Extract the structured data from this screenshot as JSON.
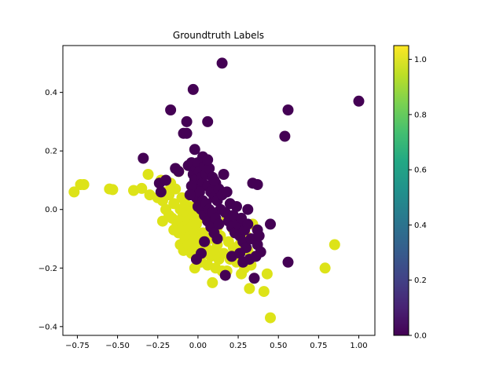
{
  "chart_data": {
    "type": "scatter",
    "title": "Groundtruth Labels",
    "xlabel": "",
    "ylabel": "",
    "xlim": [
      -0.84,
      1.1
    ],
    "ylim": [
      -0.43,
      0.56
    ],
    "x_ticks": [
      -0.75,
      -0.5,
      -0.25,
      0.0,
      0.25,
      0.5,
      0.75,
      1.0
    ],
    "x_tick_labels": [
      "−0.75",
      "−0.50",
      "−0.25",
      "0.00",
      "0.25",
      "0.50",
      "0.75",
      "1.00"
    ],
    "y_ticks": [
      -0.4,
      -0.2,
      0.0,
      0.2,
      0.4
    ],
    "y_tick_labels": [
      "−0.4",
      "−0.2",
      "0.0",
      "0.2",
      "0.4"
    ],
    "grid": false,
    "legend": "none",
    "colormap": "viridis",
    "colorbar": {
      "range": [
        0.0,
        1.05
      ],
      "ticks": [
        0.0,
        0.2,
        0.4,
        0.6,
        0.8,
        1.0
      ],
      "tick_labels": [
        "0.0",
        "0.2",
        "0.4",
        "0.6",
        "0.8",
        "1.0"
      ]
    },
    "colors": {
      "class_0": "#440154",
      "class_1": "#dde318"
    },
    "series": [
      {
        "label_value": 1,
        "points": [
          [
            -0.77,
            0.06
          ],
          [
            -0.73,
            0.085
          ],
          [
            -0.71,
            0.085
          ],
          [
            -0.55,
            0.07
          ],
          [
            -0.53,
            0.068
          ],
          [
            -0.4,
            0.065
          ],
          [
            -0.35,
            0.072
          ],
          [
            -0.31,
            0.12
          ],
          [
            -0.3,
            0.05
          ],
          [
            -0.25,
            0.04
          ],
          [
            -0.23,
            0.1
          ],
          [
            -0.22,
            0.03
          ],
          [
            -0.22,
            -0.04
          ],
          [
            -0.2,
            0.06
          ],
          [
            -0.18,
            -0.02
          ],
          [
            -0.18,
            0.05
          ],
          [
            -0.16,
            -0.03
          ],
          [
            -0.15,
            0.02
          ],
          [
            -0.14,
            0.07
          ],
          [
            -0.13,
            -0.05
          ],
          [
            -0.12,
            -0.08
          ],
          [
            -0.12,
            0.13
          ],
          [
            -0.11,
            0.0
          ],
          [
            -0.11,
            -0.12
          ],
          [
            -0.1,
            -0.03
          ],
          [
            -0.1,
            0.04
          ],
          [
            -0.09,
            -0.14
          ],
          [
            -0.09,
            -0.06
          ],
          [
            -0.08,
            -0.1
          ],
          [
            -0.08,
            0.02
          ],
          [
            -0.07,
            -0.01
          ],
          [
            -0.07,
            -0.07
          ],
          [
            -0.06,
            -0.12
          ],
          [
            -0.06,
            -0.04
          ],
          [
            -0.05,
            0.01
          ],
          [
            -0.05,
            -0.09
          ],
          [
            -0.04,
            -0.15
          ],
          [
            -0.04,
            -0.06
          ],
          [
            -0.03,
            -0.02
          ],
          [
            -0.03,
            -0.11
          ],
          [
            -0.02,
            -0.08
          ],
          [
            -0.02,
            -0.2
          ],
          [
            -0.01,
            -0.05
          ],
          [
            -0.01,
            -0.13
          ],
          [
            0.0,
            -0.1
          ],
          [
            0.0,
            -0.17
          ],
          [
            0.01,
            -0.03
          ],
          [
            0.01,
            -0.12
          ],
          [
            0.02,
            -0.18
          ],
          [
            0.03,
            -0.08
          ],
          [
            0.04,
            -0.15
          ],
          [
            0.05,
            -0.13
          ],
          [
            0.06,
            -0.19
          ],
          [
            0.07,
            -0.1
          ],
          [
            0.08,
            -0.16
          ],
          [
            0.09,
            -0.25
          ],
          [
            0.1,
            -0.14
          ],
          [
            0.11,
            -0.2
          ],
          [
            0.12,
            -0.12
          ],
          [
            0.13,
            -0.17
          ],
          [
            0.14,
            -0.09
          ],
          [
            0.15,
            -0.21
          ],
          [
            0.16,
            -0.15
          ],
          [
            0.18,
            -0.21
          ],
          [
            0.19,
            -0.11
          ],
          [
            0.2,
            -0.17
          ],
          [
            0.22,
            -0.13
          ],
          [
            0.24,
            -0.18
          ],
          [
            0.26,
            -0.12
          ],
          [
            0.27,
            -0.22
          ],
          [
            0.29,
            -0.2
          ],
          [
            0.3,
            -0.09
          ],
          [
            0.31,
            -0.14
          ],
          [
            0.32,
            -0.27
          ],
          [
            0.33,
            -0.19
          ],
          [
            0.34,
            -0.05
          ],
          [
            0.35,
            -0.16
          ],
          [
            0.41,
            -0.28
          ],
          [
            0.43,
            -0.22
          ],
          [
            0.45,
            -0.37
          ],
          [
            0.79,
            -0.2
          ],
          [
            0.85,
            -0.12
          ],
          [
            0.05,
            -0.02
          ],
          [
            0.12,
            -0.06
          ],
          [
            0.18,
            -0.03
          ],
          [
            0.22,
            -0.07
          ],
          [
            -0.15,
            -0.07
          ],
          [
            -0.2,
            0.0
          ],
          [
            -0.17,
            0.09
          ]
        ]
      },
      {
        "label_value": 0,
        "points": [
          [
            0.15,
            0.5
          ],
          [
            -0.03,
            0.41
          ],
          [
            -0.17,
            0.34
          ],
          [
            0.56,
            0.34
          ],
          [
            1.0,
            0.37
          ],
          [
            -0.07,
            0.3
          ],
          [
            0.06,
            0.3
          ],
          [
            -0.09,
            0.26
          ],
          [
            -0.07,
            0.26
          ],
          [
            0.54,
            0.25
          ],
          [
            -0.34,
            0.175
          ],
          [
            -0.02,
            0.205
          ],
          [
            -0.14,
            0.14
          ],
          [
            -0.12,
            0.13
          ],
          [
            -0.24,
            0.09
          ],
          [
            -0.23,
            0.06
          ],
          [
            -0.2,
            0.1
          ],
          [
            -0.06,
            0.15
          ],
          [
            -0.04,
            0.16
          ],
          [
            -0.03,
            0.12
          ],
          [
            -0.02,
            0.1
          ],
          [
            -0.01,
            0.14
          ],
          [
            0.0,
            0.16
          ],
          [
            0.01,
            0.13
          ],
          [
            0.02,
            0.11
          ],
          [
            0.03,
            0.09
          ],
          [
            0.04,
            0.15
          ],
          [
            0.05,
            0.12
          ],
          [
            0.06,
            0.08
          ],
          [
            0.07,
            0.14
          ],
          [
            0.08,
            0.06
          ],
          [
            0.09,
            0.11
          ],
          [
            0.1,
            0.04
          ],
          [
            0.11,
            0.09
          ],
          [
            0.12,
            0.03
          ],
          [
            0.13,
            0.07
          ],
          [
            0.14,
            0.0
          ],
          [
            0.15,
            0.05
          ],
          [
            0.16,
            0.12
          ],
          [
            0.17,
            -0.01
          ],
          [
            0.18,
            0.06
          ],
          [
            0.19,
            -0.04
          ],
          [
            0.2,
            0.02
          ],
          [
            0.21,
            -0.06
          ],
          [
            0.22,
            -0.02
          ],
          [
            0.23,
            -0.08
          ],
          [
            0.24,
            0.01
          ],
          [
            0.25,
            -0.05
          ],
          [
            0.26,
            -0.09
          ],
          [
            0.27,
            -0.03
          ],
          [
            0.28,
            -0.11
          ],
          [
            0.29,
            -0.07
          ],
          [
            0.3,
            -0.13
          ],
          [
            0.31,
            0.0
          ],
          [
            0.31,
            -0.05
          ],
          [
            0.33,
            -0.1
          ],
          [
            0.34,
            0.09
          ],
          [
            0.37,
            0.085
          ],
          [
            0.37,
            -0.07
          ],
          [
            0.37,
            -0.12
          ],
          [
            0.36,
            -0.16
          ],
          [
            0.38,
            -0.09
          ],
          [
            0.39,
            -0.145
          ],
          [
            0.35,
            -0.235
          ],
          [
            0.45,
            -0.05
          ],
          [
            0.56,
            -0.18
          ],
          [
            0.17,
            -0.225
          ],
          [
            -0.02,
            0.07
          ],
          [
            -0.01,
            0.04
          ],
          [
            0.0,
            0.01
          ],
          [
            0.01,
            0.06
          ],
          [
            0.02,
            0.0
          ],
          [
            0.03,
            0.03
          ],
          [
            0.04,
            -0.02
          ],
          [
            0.05,
            0.02
          ],
          [
            0.06,
            -0.04
          ],
          [
            0.07,
            0.0
          ],
          [
            0.08,
            -0.06
          ],
          [
            0.09,
            -0.01
          ],
          [
            0.1,
            -0.08
          ],
          [
            0.11,
            -0.03
          ],
          [
            0.12,
            -0.1
          ],
          [
            0.13,
            -0.05
          ],
          [
            -0.04,
            0.08
          ],
          [
            -0.05,
            0.05
          ],
          [
            0.03,
            0.18
          ],
          [
            0.06,
            0.17
          ],
          [
            0.1,
            0.1
          ],
          [
            0.02,
            -0.15
          ],
          [
            0.04,
            -0.11
          ],
          [
            0.21,
            -0.16
          ],
          [
            0.26,
            -0.15
          ],
          [
            0.28,
            -0.18
          ],
          [
            0.32,
            -0.17
          ],
          [
            -0.01,
            -0.17
          ]
        ]
      }
    ]
  }
}
